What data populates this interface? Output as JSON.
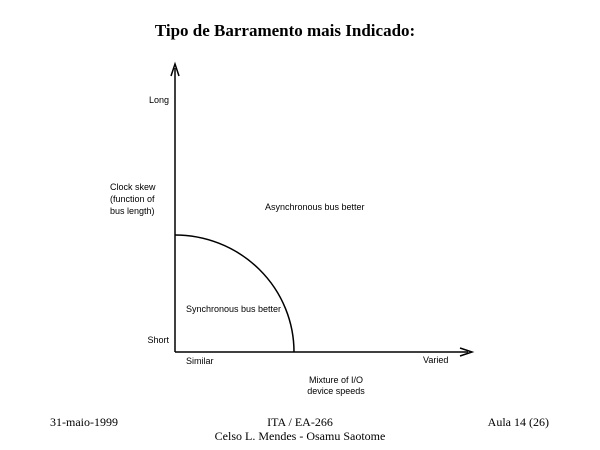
{
  "title": "Tipo de Barramento mais Indicado:",
  "diagram": {
    "y_axis": {
      "top_label": "Long",
      "bottom_label": "Short",
      "title_lines": [
        "Clock skew",
        "(function of",
        "bus length)"
      ]
    },
    "x_axis": {
      "left_label": "Similar",
      "right_label": "Varied",
      "title_lines": [
        "Mixture of I/O",
        "device speeds"
      ]
    },
    "regions": {
      "outer": "Asynchronous bus better",
      "inner": "Synchronous bus better"
    }
  },
  "footer": {
    "date": "31-maio-1999",
    "course_lines": [
      "ITA / EA-266",
      "Celso L. Mendes - Osamu Saotome"
    ],
    "page": "Aula 14 (26)"
  }
}
